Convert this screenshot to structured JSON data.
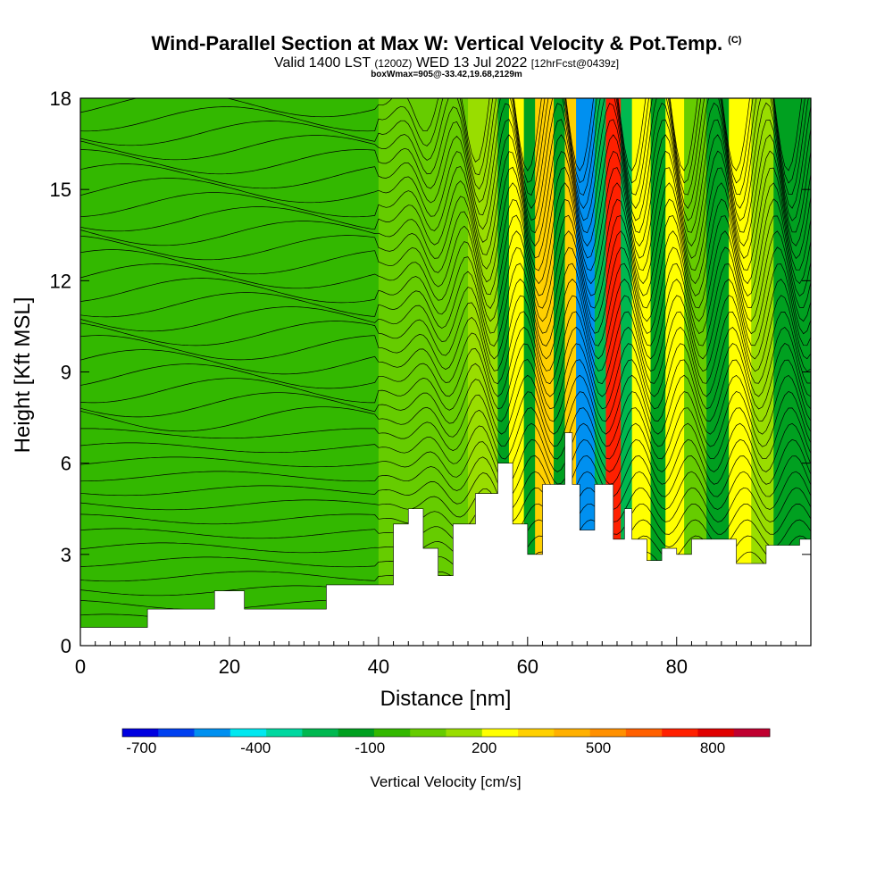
{
  "header": {
    "title": "Wind-Parallel Section at Max W: Vertical Velocity & Pot.Temp.",
    "copyright": "(C)",
    "subtitle_main": "Valid 1400 LST",
    "subtitle_z": "(1200Z)",
    "subtitle_date": "WED 13 Jul 2022",
    "subtitle_fcst": "[12hrFcst@0439z]",
    "box_info": "boxWmax=905@-33.42,19.68,2129m"
  },
  "chart_data": {
    "type": "heatmap",
    "title": "Wind-Parallel Section at Max W: Vertical Velocity & Pot.Temp.",
    "xlabel": "Distance [nm]",
    "ylabel": "Height [Kft MSL]",
    "xlim": [
      0,
      98
    ],
    "ylim": [
      0,
      18
    ],
    "x_ticks": [
      0,
      20,
      40,
      60,
      80
    ],
    "y_ticks": [
      0,
      3,
      6,
      9,
      12,
      15,
      18
    ],
    "colorbar": {
      "label": "Vertical Velocity [cm/s]",
      "tick_labels": [
        "-700",
        "-400",
        "-100",
        "200",
        "500",
        "800"
      ],
      "tick_values": [
        -700,
        -400,
        -100,
        200,
        500,
        800
      ],
      "min": -750,
      "max": 950,
      "colors": [
        "#0000e0",
        "#0040f0",
        "#0090f0",
        "#00e8f0",
        "#00d8a0",
        "#00b850",
        "#00a020",
        "#33b800",
        "#66cc00",
        "#99dd00",
        "#ffff00",
        "#ffd000",
        "#ffb000",
        "#ff9000",
        "#ff6000",
        "#ff2000",
        "#e00000",
        "#c00030"
      ]
    },
    "vertical_velocity_bands": [
      {
        "x": [
          0,
          40
        ],
        "w": -80
      },
      {
        "x": [
          40,
          52
        ],
        "w": 40
      },
      {
        "x": [
          52,
          56
        ],
        "w": 160
      },
      {
        "x": [
          56,
          57.5
        ],
        "w": -110
      },
      {
        "x": [
          57.5,
          59.5
        ],
        "w": 240
      },
      {
        "x": [
          59.5,
          61
        ],
        "w": -130
      },
      {
        "x": [
          61,
          63.5
        ],
        "w": 300
      },
      {
        "x": [
          63.5,
          65
        ],
        "w": -160
      },
      {
        "x": [
          65,
          66.5
        ],
        "w": 330
      },
      {
        "x": [
          66.5,
          69
        ],
        "w": -560
      },
      {
        "x": [
          69,
          70.5
        ],
        "w": -200
      },
      {
        "x": [
          70.5,
          72.5
        ],
        "w": 750
      },
      {
        "x": [
          72.5,
          74
        ],
        "w": -250
      },
      {
        "x": [
          74,
          76.5
        ],
        "w": 280
      },
      {
        "x": [
          76.5,
          78.5
        ],
        "w": -120
      },
      {
        "x": [
          78.5,
          81
        ],
        "w": 220
      },
      {
        "x": [
          81,
          84
        ],
        "w": 80
      },
      {
        "x": [
          84,
          87
        ],
        "w": -100
      },
      {
        "x": [
          87,
          90
        ],
        "w": 230
      },
      {
        "x": [
          90,
          93
        ],
        "w": 120
      },
      {
        "x": [
          93,
          98
        ],
        "w": -120
      }
    ],
    "terrain_height_kft": [
      [
        0,
        0.6
      ],
      [
        8,
        0.6
      ],
      [
        9,
        1.2
      ],
      [
        17,
        1.2
      ],
      [
        18,
        1.8
      ],
      [
        21,
        1.8
      ],
      [
        22,
        1.2
      ],
      [
        32,
        1.2
      ],
      [
        33,
        2.0
      ],
      [
        40,
        2.0
      ],
      [
        41,
        2.0
      ],
      [
        42,
        4.0
      ],
      [
        44,
        4.5
      ],
      [
        46,
        3.2
      ],
      [
        48,
        2.3
      ],
      [
        50,
        4.0
      ],
      [
        53,
        5.0
      ],
      [
        56,
        6.0
      ],
      [
        58,
        4.0
      ],
      [
        60,
        3.0
      ],
      [
        62,
        5.3
      ],
      [
        64,
        5.3
      ],
      [
        65,
        7.0
      ],
      [
        66,
        5.3
      ],
      [
        67,
        3.8
      ],
      [
        68,
        3.8
      ],
      [
        69,
        5.3
      ],
      [
        71,
        5.3
      ],
      [
        71.5,
        3.5
      ],
      [
        73,
        4.5
      ],
      [
        74,
        3.5
      ],
      [
        76,
        2.8
      ],
      [
        78,
        3.2
      ],
      [
        80,
        3.0
      ],
      [
        82,
        3.5
      ],
      [
        86,
        3.5
      ],
      [
        88,
        2.7
      ],
      [
        90,
        2.7
      ],
      [
        92,
        3.3
      ],
      [
        95,
        3.3
      ],
      [
        96.5,
        3.5
      ],
      [
        98,
        3.5
      ]
    ]
  }
}
